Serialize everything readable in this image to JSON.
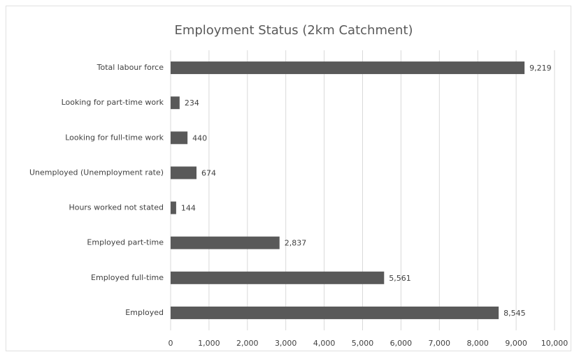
{
  "chart_data": {
    "type": "bar",
    "orientation": "horizontal",
    "title": "Employment Status (2km Catchment)",
    "categories": [
      "Total labour force",
      "Looking for part-time work",
      "Looking for full-time work",
      "Unemployed (Unemployment rate)",
      "Hours worked not stated",
      "Employed part-time",
      "Employed full-time",
      "Employed"
    ],
    "values": [
      9219,
      234,
      440,
      674,
      144,
      2837,
      5561,
      8545
    ],
    "value_labels": [
      "9,219",
      "234",
      "440",
      "674",
      "144",
      "2,837",
      "5,561",
      "8,545"
    ],
    "color": "#595959",
    "xlim": [
      0,
      10000
    ],
    "xticks": [
      0,
      {
        "value": 1000,
        "label": "1,000"
      },
      {
        "value": 2000,
        "label": "2,000"
      },
      {
        "value": 3000,
        "label": "3,000"
      },
      {
        "value": 4000,
        "label": "4,000"
      },
      {
        "value": 5000,
        "label": "5,000"
      },
      {
        "value": 6000,
        "label": "6,000"
      },
      {
        "value": 7000,
        "label": "7,000"
      },
      {
        "value": 8000,
        "label": "8,000"
      },
      {
        "value": 9000,
        "label": "9,000"
      },
      {
        "value": 10000,
        "label": "10,000"
      }
    ],
    "grid": true
  }
}
